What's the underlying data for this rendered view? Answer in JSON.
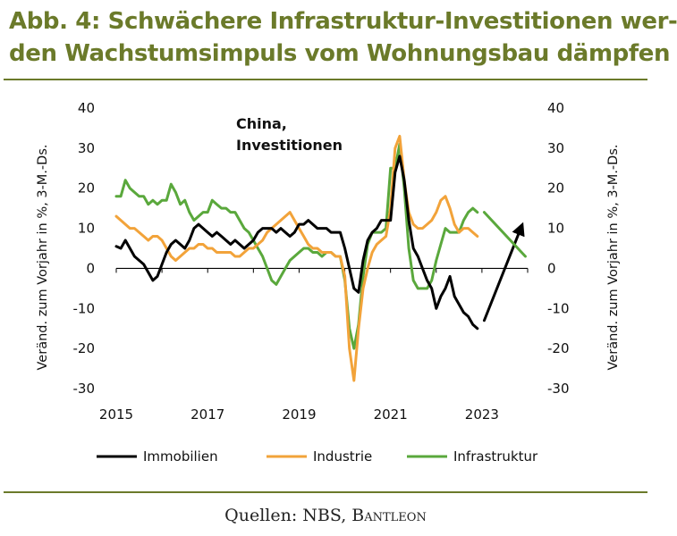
{
  "header": {
    "title_line1": "Abb. 4: Schwächere Infrastruktur-Investitionen wer-",
    "title_line2": "den Wachstumsimpuls vom Wohnungsbau dämpfen"
  },
  "source": {
    "prefix": "Quellen: NBS, ",
    "brand": "Bantleon"
  },
  "chart_data": {
    "type": "line",
    "annotation": [
      "China,",
      "Investitionen"
    ],
    "ylabel_left": "Veränd. zum Vorjahr in %, 3-M.-Ds.",
    "ylabel_right": "Veränd. zum Vorjahr in %, 3-M.-Ds.",
    "ylim": [
      -30,
      40
    ],
    "yticks": [
      40,
      30,
      20,
      10,
      0,
      -10,
      -20,
      -30
    ],
    "xlim": [
      2015,
      2024
    ],
    "xticks": [
      "2015",
      "2017",
      "2019",
      "2021",
      "2023"
    ],
    "legend_position": "bottom",
    "series": [
      {
        "name": "Immobilien",
        "color": "#000000",
        "points": [
          [
            2015.0,
            5.5
          ],
          [
            2015.1,
            5
          ],
          [
            2015.2,
            7
          ],
          [
            2015.3,
            5
          ],
          [
            2015.4,
            3
          ],
          [
            2015.5,
            2
          ],
          [
            2015.6,
            1
          ],
          [
            2015.7,
            -1
          ],
          [
            2015.8,
            -3
          ],
          [
            2015.9,
            -2
          ],
          [
            2016.0,
            1
          ],
          [
            2016.1,
            4
          ],
          [
            2016.2,
            6
          ],
          [
            2016.3,
            7
          ],
          [
            2016.4,
            6
          ],
          [
            2016.5,
            5
          ],
          [
            2016.6,
            7
          ],
          [
            2016.7,
            10
          ],
          [
            2016.8,
            11
          ],
          [
            2016.9,
            10
          ],
          [
            2017.0,
            9
          ],
          [
            2017.1,
            8
          ],
          [
            2017.2,
            9
          ],
          [
            2017.3,
            8
          ],
          [
            2017.4,
            7
          ],
          [
            2017.5,
            6
          ],
          [
            2017.6,
            7
          ],
          [
            2017.7,
            6
          ],
          [
            2017.8,
            5
          ],
          [
            2017.9,
            6
          ],
          [
            2018.0,
            7
          ],
          [
            2018.1,
            9
          ],
          [
            2018.2,
            10
          ],
          [
            2018.3,
            10
          ],
          [
            2018.4,
            10
          ],
          [
            2018.5,
            9
          ],
          [
            2018.6,
            10
          ],
          [
            2018.7,
            9
          ],
          [
            2018.8,
            8
          ],
          [
            2018.9,
            9
          ],
          [
            2019.0,
            11
          ],
          [
            2019.1,
            11
          ],
          [
            2019.2,
            12
          ],
          [
            2019.3,
            11
          ],
          [
            2019.4,
            10
          ],
          [
            2019.5,
            10
          ],
          [
            2019.6,
            10
          ],
          [
            2019.7,
            9
          ],
          [
            2019.8,
            9
          ],
          [
            2019.9,
            9
          ],
          [
            2020.0,
            5
          ],
          [
            2020.1,
            0
          ],
          [
            2020.2,
            -5
          ],
          [
            2020.3,
            -6
          ],
          [
            2020.4,
            2
          ],
          [
            2020.5,
            7
          ],
          [
            2020.6,
            9
          ],
          [
            2020.7,
            10
          ],
          [
            2020.8,
            12
          ],
          [
            2020.9,
            12
          ],
          [
            2021.0,
            12
          ],
          [
            2021.1,
            24
          ],
          [
            2021.2,
            28
          ],
          [
            2021.3,
            22
          ],
          [
            2021.4,
            12
          ],
          [
            2021.5,
            5
          ],
          [
            2021.6,
            3
          ],
          [
            2021.7,
            0
          ],
          [
            2021.8,
            -3
          ],
          [
            2021.9,
            -5
          ],
          [
            2022.0,
            -10
          ],
          [
            2022.1,
            -7
          ],
          [
            2022.2,
            -5
          ],
          [
            2022.3,
            -2
          ],
          [
            2022.4,
            -7
          ],
          [
            2022.5,
            -9
          ],
          [
            2022.6,
            -11
          ],
          [
            2022.7,
            -12
          ],
          [
            2022.8,
            -14
          ],
          [
            2022.9,
            -15
          ]
        ]
      },
      {
        "name": "Industrie",
        "color": "#f2a33a",
        "points": [
          [
            2015.0,
            13
          ],
          [
            2015.1,
            12
          ],
          [
            2015.2,
            11
          ],
          [
            2015.3,
            10
          ],
          [
            2015.4,
            10
          ],
          [
            2015.5,
            9
          ],
          [
            2015.6,
            8
          ],
          [
            2015.7,
            7
          ],
          [
            2015.8,
            8
          ],
          [
            2015.9,
            8
          ],
          [
            2016.0,
            7
          ],
          [
            2016.1,
            5
          ],
          [
            2016.2,
            3
          ],
          [
            2016.3,
            2
          ],
          [
            2016.4,
            3
          ],
          [
            2016.5,
            4
          ],
          [
            2016.6,
            5
          ],
          [
            2016.7,
            5
          ],
          [
            2016.8,
            6
          ],
          [
            2016.9,
            6
          ],
          [
            2017.0,
            5
          ],
          [
            2017.1,
            5
          ],
          [
            2017.2,
            4
          ],
          [
            2017.3,
            4
          ],
          [
            2017.4,
            4
          ],
          [
            2017.5,
            4
          ],
          [
            2017.6,
            3
          ],
          [
            2017.7,
            3
          ],
          [
            2017.8,
            4
          ],
          [
            2017.9,
            5
          ],
          [
            2018.0,
            5
          ],
          [
            2018.1,
            6
          ],
          [
            2018.2,
            7
          ],
          [
            2018.3,
            9
          ],
          [
            2018.4,
            10
          ],
          [
            2018.5,
            11
          ],
          [
            2018.6,
            12
          ],
          [
            2018.7,
            13
          ],
          [
            2018.8,
            14
          ],
          [
            2018.9,
            12
          ],
          [
            2019.0,
            10
          ],
          [
            2019.1,
            8
          ],
          [
            2019.2,
            6
          ],
          [
            2019.3,
            5
          ],
          [
            2019.4,
            5
          ],
          [
            2019.5,
            4
          ],
          [
            2019.6,
            4
          ],
          [
            2019.7,
            4
          ],
          [
            2019.8,
            3
          ],
          [
            2019.9,
            3
          ],
          [
            2020.0,
            -2
          ],
          [
            2020.1,
            -20
          ],
          [
            2020.2,
            -28
          ],
          [
            2020.3,
            -15
          ],
          [
            2020.4,
            -5
          ],
          [
            2020.5,
            0
          ],
          [
            2020.6,
            4
          ],
          [
            2020.7,
            6
          ],
          [
            2020.8,
            7
          ],
          [
            2020.9,
            8
          ],
          [
            2021.0,
            15
          ],
          [
            2021.1,
            30
          ],
          [
            2021.2,
            33
          ],
          [
            2021.3,
            22
          ],
          [
            2021.4,
            14
          ],
          [
            2021.5,
            11
          ],
          [
            2021.6,
            10
          ],
          [
            2021.7,
            10
          ],
          [
            2021.8,
            11
          ],
          [
            2021.9,
            12
          ],
          [
            2022.0,
            14
          ],
          [
            2022.1,
            17
          ],
          [
            2022.2,
            18
          ],
          [
            2022.3,
            15
          ],
          [
            2022.4,
            11
          ],
          [
            2022.5,
            9
          ],
          [
            2022.6,
            10
          ],
          [
            2022.7,
            10
          ],
          [
            2022.8,
            9
          ],
          [
            2022.9,
            8
          ]
        ]
      },
      {
        "name": "Infrastruktur",
        "color": "#5aa83c",
        "points": [
          [
            2015.0,
            18
          ],
          [
            2015.1,
            18
          ],
          [
            2015.2,
            22
          ],
          [
            2015.3,
            20
          ],
          [
            2015.4,
            19
          ],
          [
            2015.5,
            18
          ],
          [
            2015.6,
            18
          ],
          [
            2015.7,
            16
          ],
          [
            2015.8,
            17
          ],
          [
            2015.9,
            16
          ],
          [
            2016.0,
            17
          ],
          [
            2016.1,
            17
          ],
          [
            2016.2,
            21
          ],
          [
            2016.3,
            19
          ],
          [
            2016.4,
            16
          ],
          [
            2016.5,
            17
          ],
          [
            2016.6,
            14
          ],
          [
            2016.7,
            12
          ],
          [
            2016.8,
            13
          ],
          [
            2016.9,
            14
          ],
          [
            2017.0,
            14
          ],
          [
            2017.1,
            17
          ],
          [
            2017.2,
            16
          ],
          [
            2017.3,
            15
          ],
          [
            2017.4,
            15
          ],
          [
            2017.5,
            14
          ],
          [
            2017.6,
            14
          ],
          [
            2017.7,
            12
          ],
          [
            2017.8,
            10
          ],
          [
            2017.9,
            9
          ],
          [
            2018.0,
            7
          ],
          [
            2018.1,
            5
          ],
          [
            2018.2,
            3
          ],
          [
            2018.3,
            0
          ],
          [
            2018.4,
            -3
          ],
          [
            2018.5,
            -4
          ],
          [
            2018.6,
            -2
          ],
          [
            2018.7,
            0
          ],
          [
            2018.8,
            2
          ],
          [
            2018.9,
            3
          ],
          [
            2019.0,
            4
          ],
          [
            2019.1,
            5
          ],
          [
            2019.2,
            5
          ],
          [
            2019.3,
            4
          ],
          [
            2019.4,
            4
          ],
          [
            2019.5,
            3
          ],
          [
            2019.6,
            4
          ],
          [
            2019.7,
            4
          ],
          [
            2019.8,
            3
          ],
          [
            2019.9,
            3
          ],
          [
            2020.0,
            -3
          ],
          [
            2020.1,
            -15
          ],
          [
            2020.2,
            -20
          ],
          [
            2020.3,
            -14
          ],
          [
            2020.4,
            -2
          ],
          [
            2020.5,
            6
          ],
          [
            2020.6,
            9
          ],
          [
            2020.7,
            9
          ],
          [
            2020.8,
            9
          ],
          [
            2020.9,
            10
          ],
          [
            2021.0,
            25
          ],
          [
            2021.1,
            25
          ],
          [
            2021.2,
            31
          ],
          [
            2021.3,
            20
          ],
          [
            2021.4,
            5
          ],
          [
            2021.5,
            -3
          ],
          [
            2021.6,
            -5
          ],
          [
            2021.7,
            -5
          ],
          [
            2021.8,
            -5
          ],
          [
            2021.9,
            -3
          ],
          [
            2022.0,
            2
          ],
          [
            2022.1,
            6
          ],
          [
            2022.2,
            10
          ],
          [
            2022.3,
            9
          ],
          [
            2022.4,
            9
          ],
          [
            2022.5,
            9
          ],
          [
            2022.6,
            12
          ],
          [
            2022.7,
            14
          ],
          [
            2022.8,
            15
          ],
          [
            2022.9,
            14
          ]
        ]
      }
    ],
    "projections": [
      {
        "series": "Immobilien",
        "color": "#000000",
        "from": [
          2023.05,
          -13
        ],
        "to": [
          2023.85,
          10
        ],
        "arrow": true
      },
      {
        "series": "Infrastruktur",
        "color": "#5aa83c",
        "from": [
          2023.05,
          14
        ],
        "to": [
          2023.95,
          3
        ],
        "arrow": false
      }
    ]
  }
}
